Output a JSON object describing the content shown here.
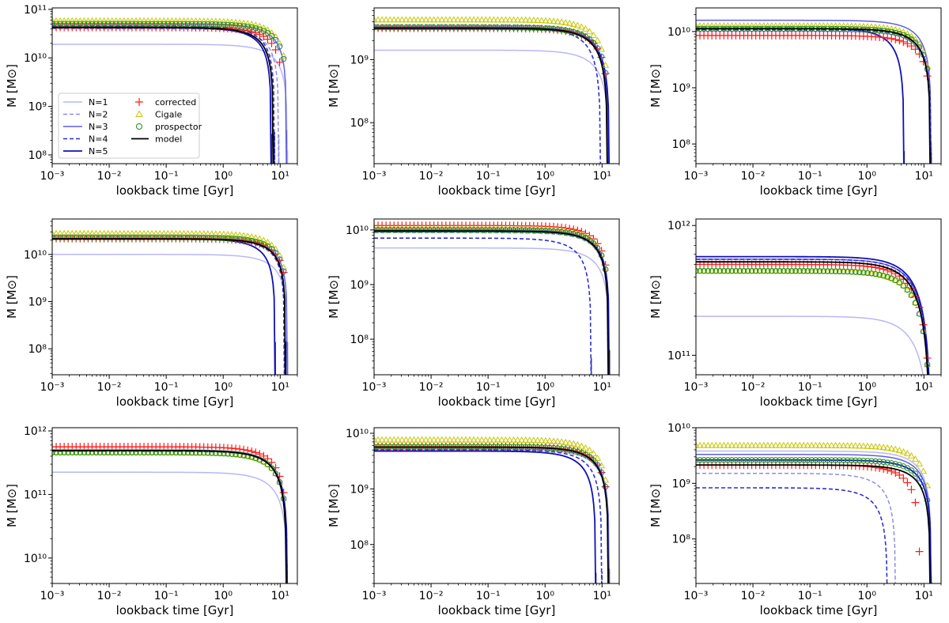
{
  "colors": {
    "N1": "#b8b8f4",
    "N2": "#8d8de8",
    "N3": "#5f5fe0",
    "N4": "#2f2fcf",
    "N5": "#1010b8",
    "corrected": "#ff1a1a",
    "cigale": "#c8c800",
    "prospector": "#1a8f1a",
    "prospector_edge": "#1f77b4",
    "model": "#000000"
  },
  "legend": {
    "entries": [
      "N=1",
      "N=2",
      "N=3",
      "N=4",
      "N=5",
      "corrected",
      "Cigale",
      "prospector",
      "model"
    ]
  },
  "chart_data": [
    {
      "type": "line",
      "panel": 1,
      "xlabel": "lookback time [Gyr]",
      "ylabel": "M [M⊙]",
      "xscale": "log",
      "yscale": "log",
      "xlim": [
        0.001,
        20
      ],
      "ylim_log10": [
        7.82,
        11.03
      ],
      "xticks": [
        "10⁻³",
        "10⁻²",
        "10⁻¹",
        "10⁰",
        "10¹"
      ],
      "yticks": [
        {
          "exp": 8,
          "label": "10⁸"
        },
        {
          "exp": 9,
          "label": "10⁹"
        },
        {
          "exp": 10,
          "label": "10¹⁰"
        },
        {
          "exp": 11,
          "label": "10¹¹"
        }
      ],
      "legend": true,
      "series": [
        {
          "name": "N=1",
          "plateau_log10": 10.28,
          "end_time": 13.5,
          "width": 1.5
        },
        {
          "name": "N=2",
          "plateau_log10": 10.6,
          "end_time": 9.5
        },
        {
          "name": "N=3",
          "plateau_log10": 10.7,
          "end_time": 13.0
        },
        {
          "name": "N=4",
          "plateau_log10": 10.66,
          "end_time": 8.0
        },
        {
          "name": "N=5",
          "plateau_log10": 10.62,
          "end_time": 7.0
        }
      ],
      "model": {
        "plateau_log10": 10.63,
        "end_time": 7.6
      },
      "markers": {
        "corrected": {
          "plateau_log10": 10.63,
          "end_time": 11.5
        },
        "cigale": {
          "plateau_log10": 10.76,
          "end_time": 13.5
        },
        "prospector": {
          "plateau_log10": 10.7,
          "end_time": 13.5
        }
      }
    },
    {
      "type": "line",
      "panel": 2,
      "xlabel": "lookback time [Gyr]",
      "ylabel": "M [M⊙]",
      "xscale": "log",
      "yscale": "log",
      "xlim": [
        0.001,
        20
      ],
      "ylim_log10": [
        7.35,
        9.82
      ],
      "xticks": [
        "10⁻³",
        "10⁻²",
        "10⁻¹",
        "10⁰",
        "10¹"
      ],
      "yticks": [
        {
          "exp": 8,
          "label": "10⁸"
        },
        {
          "exp": 9,
          "label": "10⁹"
        }
      ],
      "series": [
        {
          "name": "N=1",
          "plateau_log10": 9.15,
          "end_time": 13.5
        },
        {
          "name": "N=2",
          "plateau_log10": 9.55,
          "end_time": 12.5
        },
        {
          "name": "N=3",
          "plateau_log10": 9.52,
          "end_time": 13.0
        },
        {
          "name": "N=4",
          "plateau_log10": 9.5,
          "end_time": 9.5
        },
        {
          "name": "N=5",
          "plateau_log10": 9.49,
          "end_time": 13.5
        }
      ],
      "model": {
        "plateau_log10": 9.5,
        "end_time": 12.5
      },
      "markers": {
        "corrected": {
          "plateau_log10": 9.5,
          "end_time": 13.5
        },
        "cigale": {
          "plateau_log10": 9.63,
          "end_time": 13.5
        },
        "prospector": {
          "plateau_log10": 9.51,
          "end_time": 13.5
        }
      }
    },
    {
      "type": "line",
      "panel": 3,
      "xlabel": "lookback time [Gyr]",
      "ylabel": "M [M⊙]",
      "xscale": "log",
      "yscale": "log",
      "xlim": [
        0.001,
        20
      ],
      "ylim_log10": [
        7.65,
        10.42
      ],
      "xticks": [
        "10⁻³",
        "10⁻²",
        "10⁻¹",
        "10⁰",
        "10¹"
      ],
      "yticks": [
        {
          "exp": 8,
          "label": "10⁸"
        },
        {
          "exp": 9,
          "label": "10⁹"
        },
        {
          "exp": 10,
          "label": "10¹⁰"
        }
      ],
      "series": [
        {
          "name": "N=1",
          "plateau_log10": 10.0,
          "end_time": 13.5
        },
        {
          "name": "N=2",
          "plateau_log10": 10.08,
          "end_time": 13.5
        },
        {
          "name": "N=3",
          "plateau_log10": 10.2,
          "end_time": 13.5
        },
        {
          "name": "N=4",
          "plateau_log10": 10.03,
          "end_time": 13.5
        },
        {
          "name": "N=5",
          "plateau_log10": 10.06,
          "end_time": 4.5
        }
      ],
      "model": {
        "plateau_log10": 10.05,
        "end_time": 13.0
      },
      "markers": {
        "corrected": {
          "plateau_log10": 9.93,
          "end_time": 13.5
        },
        "cigale": {
          "plateau_log10": 10.1,
          "end_time": 13.5
        },
        "prospector": {
          "plateau_log10": 10.05,
          "end_time": 13.5
        }
      }
    },
    {
      "type": "line",
      "panel": 4,
      "xlabel": "lookback time [Gyr]",
      "ylabel": "M [M⊙]",
      "xscale": "log",
      "yscale": "log",
      "xlim": [
        0.001,
        20
      ],
      "ylim_log10": [
        7.45,
        10.75
      ],
      "xticks": [
        "10⁻³",
        "10⁻²",
        "10⁻¹",
        "10⁰",
        "10¹"
      ],
      "yticks": [
        {
          "exp": 8,
          "label": "10⁸"
        },
        {
          "exp": 9,
          "label": "10⁹"
        },
        {
          "exp": 10,
          "label": "10¹⁰"
        }
      ],
      "series": [
        {
          "name": "N=1",
          "plateau_log10": 10.0,
          "end_time": 13.5
        },
        {
          "name": "N=2",
          "plateau_log10": 10.38,
          "end_time": 12.5
        },
        {
          "name": "N=3",
          "plateau_log10": 10.33,
          "end_time": 13.5
        },
        {
          "name": "N=4",
          "plateau_log10": 10.32,
          "end_time": 12.0
        },
        {
          "name": "N=5",
          "plateau_log10": 10.33,
          "end_time": 8.2
        }
      ],
      "model": {
        "plateau_log10": 10.33,
        "end_time": 12.5
      },
      "markers": {
        "corrected": {
          "plateau_log10": 10.34,
          "end_time": 13.5
        },
        "cigale": {
          "plateau_log10": 10.44,
          "end_time": 13.5
        },
        "prospector": {
          "plateau_log10": 10.36,
          "end_time": 13.5
        }
      }
    },
    {
      "type": "line",
      "panel": 5,
      "xlabel": "lookback time [Gyr]",
      "ylabel": "M [M⊙]",
      "xscale": "log",
      "yscale": "log",
      "xlim": [
        0.001,
        20
      ],
      "ylim_log10": [
        7.35,
        10.2
      ],
      "xticks": [
        "10⁻³",
        "10⁻²",
        "10⁻¹",
        "10⁰",
        "10¹"
      ],
      "yticks": [
        {
          "exp": 8,
          "label": "10⁸"
        },
        {
          "exp": 9,
          "label": "10⁹"
        },
        {
          "exp": 10,
          "label": "10¹⁰"
        }
      ],
      "series": [
        {
          "name": "N=1",
          "plateau_log10": 9.67,
          "end_time": 13.5
        },
        {
          "name": "N=2",
          "plateau_log10": 9.95,
          "end_time": 13.0
        },
        {
          "name": "N=3",
          "plateau_log10": 10.0,
          "end_time": 13.5
        },
        {
          "name": "N=4",
          "plateau_log10": 9.85,
          "end_time": 6.5
        },
        {
          "name": "N=5",
          "plateau_log10": 9.98,
          "end_time": 13.5
        }
      ],
      "model": {
        "plateau_log10": 9.98,
        "end_time": 13.0
      },
      "markers": {
        "corrected": {
          "plateau_log10": 10.08,
          "end_time": 13.5
        },
        "cigale": {
          "plateau_log10": 10.02,
          "end_time": 13.5
        },
        "prospector": {
          "plateau_log10": 10.0,
          "end_time": 13.5
        }
      }
    },
    {
      "type": "line",
      "panel": 6,
      "xlabel": "lookback time [Gyr]",
      "ylabel": "M [M⊙]",
      "xscale": "log",
      "yscale": "log",
      "xlim": [
        0.001,
        20
      ],
      "ylim_log10": [
        10.85,
        12.05
      ],
      "xticks": [
        "10⁻³",
        "10⁻²",
        "10⁻¹",
        "10⁰",
        "10¹"
      ],
      "yticks": [
        {
          "exp": 11,
          "label": "10¹¹"
        },
        {
          "exp": 12,
          "label": "10¹²"
        }
      ],
      "series": [
        {
          "name": "N=1",
          "plateau_log10": 11.3,
          "end_time": 13.5
        },
        {
          "name": "N=2",
          "plateau_log10": 11.72,
          "end_time": 13.5
        },
        {
          "name": "N=3",
          "plateau_log10": 11.74,
          "end_time": 13.5
        },
        {
          "name": "N=4",
          "plateau_log10": 11.74,
          "end_time": 13.5
        },
        {
          "name": "N=5",
          "plateau_log10": 11.76,
          "end_time": 13.5
        }
      ],
      "model": {
        "plateau_log10": 11.72,
        "end_time": 13.0
      },
      "markers": {
        "corrected": {
          "plateau_log10": 11.7,
          "end_time": 13.5
        },
        "cigale": {
          "plateau_log10": 11.65,
          "end_time": 13.5
        },
        "prospector": {
          "plateau_log10": 11.65,
          "end_time": 13.5
        }
      }
    },
    {
      "type": "line",
      "panel": 7,
      "xlabel": "lookback time [Gyr]",
      "ylabel": "M [M⊙]",
      "xscale": "log",
      "yscale": "log",
      "xlim": [
        0.001,
        20
      ],
      "ylim_log10": [
        9.6,
        12.05
      ],
      "xticks": [
        "10⁻³",
        "10⁻²",
        "10⁻¹",
        "10⁰",
        "10¹"
      ],
      "yticks": [
        {
          "exp": 10,
          "label": "10¹⁰"
        },
        {
          "exp": 11,
          "label": "10¹¹"
        },
        {
          "exp": 12,
          "label": "10¹²"
        }
      ],
      "series": [
        {
          "name": "N=1",
          "plateau_log10": 11.35,
          "end_time": 13.5
        },
        {
          "name": "N=2",
          "plateau_log10": 11.68,
          "end_time": 13.5
        },
        {
          "name": "N=3",
          "plateau_log10": 11.7,
          "end_time": 13.5
        },
        {
          "name": "N=4",
          "plateau_log10": 11.68,
          "end_time": 13.5
        },
        {
          "name": "N=5",
          "plateau_log10": 11.69,
          "end_time": 13.5
        }
      ],
      "model": {
        "plateau_log10": 11.69,
        "end_time": 13.0
      },
      "markers": {
        "corrected": {
          "plateau_log10": 11.75,
          "end_time": 13.5
        },
        "cigale": {
          "plateau_log10": 11.66,
          "end_time": 13.5
        },
        "prospector": {
          "plateau_log10": 11.66,
          "end_time": 13.5
        }
      }
    },
    {
      "type": "line",
      "panel": 8,
      "xlabel": "lookback time [Gyr]",
      "ylabel": "M [M⊙]",
      "xscale": "log",
      "yscale": "log",
      "xlim": [
        0.001,
        20
      ],
      "ylim_log10": [
        7.3,
        10.1
      ],
      "xticks": [
        "10⁻³",
        "10⁻²",
        "10⁻¹",
        "10⁰",
        "10¹"
      ],
      "yticks": [
        {
          "exp": 8,
          "label": "10⁸"
        },
        {
          "exp": 9,
          "label": "10⁹"
        },
        {
          "exp": 10,
          "label": "10¹⁰"
        }
      ],
      "series": [
        {
          "name": "N=1",
          "plateau_log10": 9.7,
          "end_time": 13.5
        },
        {
          "name": "N=2",
          "plateau_log10": 9.72,
          "end_time": 13.0
        },
        {
          "name": "N=3",
          "plateau_log10": 9.75,
          "end_time": 13.5
        },
        {
          "name": "N=4",
          "plateau_log10": 9.7,
          "end_time": 10.0
        },
        {
          "name": "N=5",
          "plateau_log10": 9.68,
          "end_time": 7.8
        }
      ],
      "model": {
        "plateau_log10": 9.75,
        "end_time": 13.0
      },
      "markers": {
        "corrected": {
          "plateau_log10": 9.76,
          "end_time": 13.5
        },
        "cigale": {
          "plateau_log10": 9.88,
          "end_time": 13.5
        },
        "prospector": {
          "plateau_log10": 9.76,
          "end_time": 13.5
        }
      }
    },
    {
      "type": "line",
      "panel": 9,
      "xlabel": "lookback time [Gyr]",
      "ylabel": "M [M⊙]",
      "xscale": "log",
      "yscale": "log",
      "xlim": [
        0.001,
        20
      ],
      "ylim_log10": [
        7.2,
        10.0
      ],
      "xticks": [
        "10⁻³",
        "10⁻²",
        "10⁻¹",
        "10⁰",
        "10¹"
      ],
      "yticks": [
        {
          "exp": 8,
          "label": "10⁸"
        },
        {
          "exp": 9,
          "label": "10⁹"
        },
        {
          "exp": 10,
          "label": "10¹⁰"
        }
      ],
      "series": [
        {
          "name": "N=1",
          "plateau_log10": 9.58,
          "end_time": 13.5
        },
        {
          "name": "N=2",
          "plateau_log10": 9.18,
          "end_time": 3.2
        },
        {
          "name": "N=3",
          "plateau_log10": 9.52,
          "end_time": 13.5
        },
        {
          "name": "N=4",
          "plateau_log10": 8.92,
          "end_time": 2.3
        },
        {
          "name": "N=5",
          "plateau_log10": 9.42,
          "end_time": 13.5
        }
      ],
      "model": {
        "plateau_log10": 9.33,
        "end_time": 13.0
      },
      "markers": {
        "corrected": {
          "plateau_log10": 9.33,
          "end_time": 8.5
        },
        "cigale": {
          "plateau_log10": 9.68,
          "end_time": 13.5
        },
        "prospector": {
          "plateau_log10": 9.42,
          "end_time": 13.5
        }
      }
    }
  ]
}
